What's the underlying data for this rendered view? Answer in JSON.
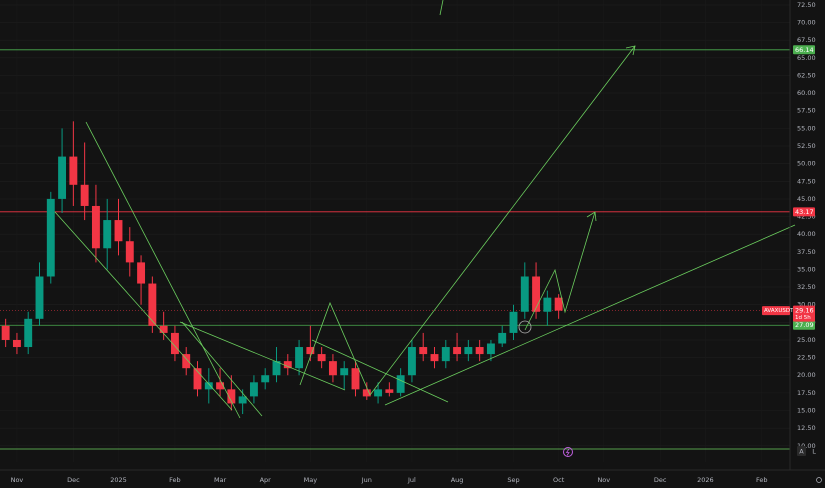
{
  "chart_data": {
    "type": "candlestick",
    "symbol": "AVAXUSDT",
    "countdown": "1d 5h",
    "last_price": "29.16",
    "scale_buttons": [
      "A",
      "L"
    ],
    "up_color": "#089981",
    "down_color": "#f23645",
    "grid": true,
    "categories": [
      null,
      "Nov",
      null,
      null,
      null,
      null,
      "Dec",
      null,
      null,
      null,
      "2025",
      null,
      null,
      null,
      null,
      "Feb",
      null,
      null,
      null,
      "Mar",
      null,
      null,
      null,
      "Apr",
      null,
      null,
      null,
      "May",
      null,
      null,
      null,
      null,
      "Jun",
      null,
      null,
      null,
      "Jul",
      null,
      null,
      null,
      "Aug",
      null,
      null,
      null,
      null,
      "Sep",
      null,
      null,
      null,
      "Oct",
      null,
      null,
      null,
      "Nov",
      null,
      null,
      null,
      null,
      "Dec",
      null,
      null,
      null,
      "2026",
      null,
      null,
      null,
      null,
      "Feb",
      null,
      null
    ],
    "open": [
      27,
      25,
      24,
      28,
      34,
      45,
      51,
      47,
      44,
      38,
      42,
      39,
      36,
      33,
      27,
      26,
      23,
      21,
      18,
      19,
      18,
      16,
      17,
      19,
      20,
      22,
      21,
      24,
      23,
      22,
      20,
      21,
      18,
      17,
      18,
      17.5,
      20,
      24,
      23,
      22,
      24,
      23,
      24,
      23,
      24.5,
      26,
      29,
      34,
      29,
      31,
      null,
      null,
      null,
      null,
      null,
      null,
      null,
      null,
      null,
      null,
      null,
      null,
      null,
      null,
      null,
      null,
      null,
      null,
      null,
      null
    ],
    "high": [
      28,
      26,
      29,
      36,
      46,
      55,
      56,
      53,
      47,
      45,
      45,
      41,
      37,
      34,
      29,
      27,
      24,
      22,
      21,
      21,
      20,
      18,
      20,
      21,
      24,
      23,
      25,
      27,
      24,
      23,
      22,
      22,
      19,
      19,
      19,
      21,
      25,
      26,
      24,
      25,
      26,
      25,
      25,
      25,
      27,
      30,
      36,
      36,
      32,
      31.5,
      null,
      null,
      null,
      null,
      null,
      null,
      null,
      null,
      null,
      null,
      null,
      null,
      null,
      null,
      null,
      null,
      null,
      null,
      null,
      null
    ],
    "low": [
      24,
      23,
      23,
      27,
      33,
      43,
      44,
      42,
      36,
      35,
      37,
      34,
      30,
      26,
      25,
      22,
      20,
      17,
      16,
      17,
      15,
      14.5,
      16,
      18,
      19,
      20,
      20,
      22,
      21,
      19,
      18,
      17,
      16.5,
      16,
      17,
      17,
      19,
      22,
      21,
      21,
      22,
      22,
      22,
      22,
      24,
      25,
      28,
      28,
      27,
      28,
      null,
      null,
      null,
      null,
      null,
      null,
      null,
      null,
      null,
      null,
      null,
      null,
      null,
      null,
      null,
      null,
      null,
      null,
      null,
      null
    ],
    "close": [
      25,
      24,
      28,
      34,
      45,
      51,
      47,
      44,
      38,
      42,
      39,
      36,
      33,
      27,
      26,
      23,
      21,
      18,
      19,
      18,
      16,
      17,
      19,
      20,
      22,
      21,
      24,
      23,
      22,
      20,
      21,
      18,
      17,
      18,
      17.5,
      20,
      24,
      23,
      22,
      24,
      23,
      24,
      23,
      24.5,
      26,
      29,
      34,
      29,
      31,
      29.16,
      null,
      null,
      null,
      null,
      null,
      null,
      null,
      null,
      null,
      null,
      null,
      null,
      null,
      null,
      null,
      null,
      null,
      null,
      null,
      null
    ],
    "levels": [
      {
        "value": 66.14,
        "color": "#4caf50"
      },
      {
        "value": 43.17,
        "color": "#f23645"
      },
      {
        "value": 27.09,
        "color": "#4caf50"
      }
    ],
    "ylim": [
      7.7,
      73.2
    ],
    "yticks": [
      {
        "value": 72.5,
        "label": "72.50"
      },
      {
        "value": 70,
        "label": "70.00"
      },
      {
        "value": 67.5,
        "label": "67.50"
      },
      {
        "value": 65,
        "label": "65.00"
      },
      {
        "value": 62.5,
        "label": "62.50"
      },
      {
        "value": 60,
        "label": "60.00"
      },
      {
        "value": 57.5,
        "label": "57.50"
      },
      {
        "value": 55,
        "label": "55.00"
      },
      {
        "value": 52.5,
        "label": "52.50"
      },
      {
        "value": 50,
        "label": "50.00"
      },
      {
        "value": 47.5,
        "label": "47.50"
      },
      {
        "value": 45,
        "label": "45.00"
      },
      {
        "value": 42.5,
        "label": "42.50"
      },
      {
        "value": 40,
        "label": "40.00"
      },
      {
        "value": 37.5,
        "label": "37.50"
      },
      {
        "value": 35,
        "label": "35.00"
      },
      {
        "value": 32.5,
        "label": "32.50"
      },
      {
        "value": 30,
        "label": "30.00"
      },
      {
        "value": 27.5,
        "label": "27.50"
      },
      {
        "value": 25,
        "label": "25.00"
      },
      {
        "value": 22.5,
        "label": "22.50"
      },
      {
        "value": 20,
        "label": "20.00"
      },
      {
        "value": 17.5,
        "label": "17.50"
      },
      {
        "value": 15,
        "label": "15.00"
      },
      {
        "value": 12.5,
        "label": "12.50"
      },
      {
        "value": 10,
        "label": "10.00"
      }
    ]
  }
}
